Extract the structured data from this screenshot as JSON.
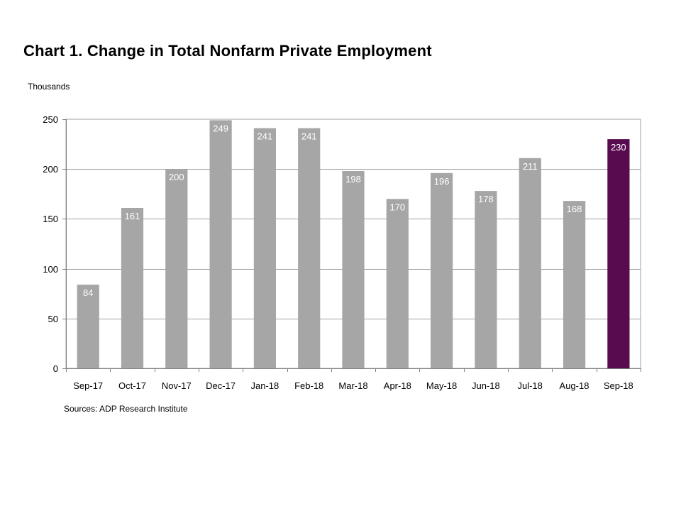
{
  "title": "Chart 1. Change in Total Nonfarm Private Employment",
  "source": "Sources: ADP Research Institute",
  "chart_data": {
    "type": "bar",
    "title": "Chart 1. Change in Total Nonfarm Private Employment",
    "ylabel": "Thousands",
    "xlabel": "",
    "categories": [
      "Sep-17",
      "Oct-17",
      "Nov-17",
      "Dec-17",
      "Jan-18",
      "Feb-18",
      "Mar-18",
      "Apr-18",
      "May-18",
      "Jun-18",
      "Jul-18",
      "Aug-18",
      "Sep-18"
    ],
    "values": [
      84,
      161,
      200,
      249,
      241,
      241,
      198,
      170,
      196,
      178,
      211,
      168,
      230
    ],
    "data_labels": [
      "84",
      "161",
      "200",
      "249",
      "241",
      "241",
      "198",
      "170",
      "196",
      "178",
      "211",
      "168",
      "230"
    ],
    "yticks": [
      0,
      50,
      100,
      150,
      200,
      250
    ],
    "ylim": [
      0,
      250
    ],
    "grid": true,
    "legend": "none",
    "colors": {
      "bar": "#a6a6a6",
      "highlight": "#580b4f",
      "grid": "#a0a0a0",
      "label": "#ffffff"
    },
    "highlight_index": 12
  }
}
